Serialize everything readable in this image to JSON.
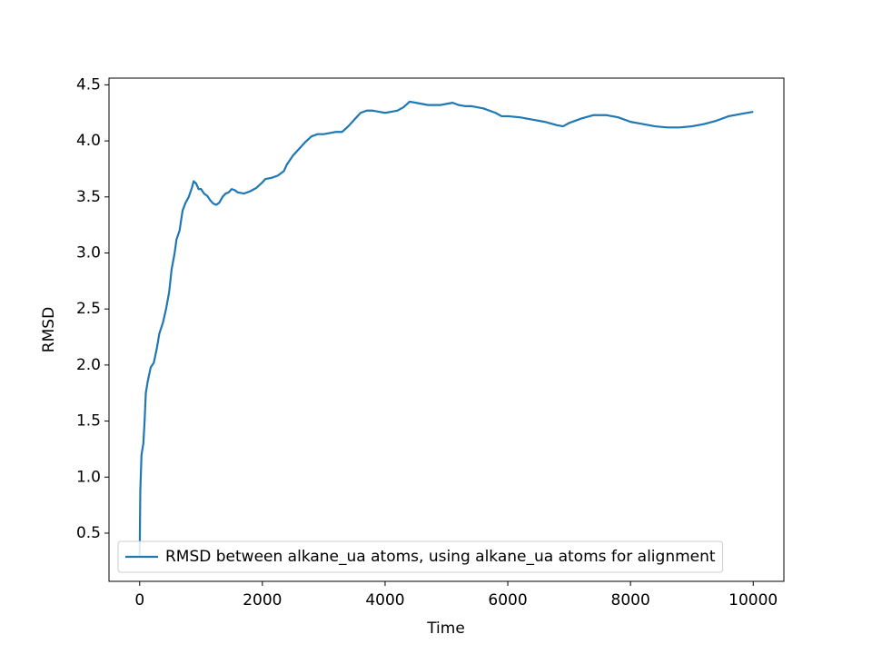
{
  "chart_data": {
    "type": "line",
    "xlabel": "Time",
    "ylabel": "RMSD",
    "x": [
      0,
      10,
      30,
      60,
      80,
      100,
      130,
      180,
      230,
      280,
      320,
      380,
      430,
      480,
      520,
      570,
      600,
      650,
      700,
      750,
      800,
      850,
      880,
      920,
      960,
      1000,
      1050,
      1100,
      1150,
      1200,
      1250,
      1300,
      1350,
      1400,
      1450,
      1500,
      1550,
      1600,
      1700,
      1800,
      1900,
      2000,
      2050,
      2150,
      2250,
      2350,
      2400,
      2500,
      2600,
      2700,
      2800,
      2900,
      3000,
      3100,
      3200,
      3300,
      3400,
      3500,
      3600,
      3700,
      3800,
      3900,
      4000,
      4100,
      4200,
      4300,
      4400,
      4500,
      4600,
      4700,
      4800,
      4900,
      5000,
      5100,
      5200,
      5300,
      5400,
      5600,
      5800,
      5900,
      6000,
      6200,
      6400,
      6600,
      6800,
      6900,
      7000,
      7200,
      7400,
      7600,
      7800,
      8000,
      8200,
      8400,
      8600,
      8800,
      9000,
      9200,
      9400,
      9600,
      9800,
      10000
    ],
    "series": [
      {
        "name": "RMSD between alkane_ua atoms, using alkane_ua atoms for alignment",
        "color": "#1f77b4",
        "values": [
          0.3,
          0.88,
          1.2,
          1.3,
          1.5,
          1.75,
          1.85,
          1.98,
          2.02,
          2.15,
          2.28,
          2.38,
          2.5,
          2.65,
          2.85,
          3.0,
          3.12,
          3.2,
          3.38,
          3.45,
          3.5,
          3.58,
          3.64,
          3.62,
          3.57,
          3.57,
          3.53,
          3.51,
          3.47,
          3.44,
          3.43,
          3.45,
          3.5,
          3.53,
          3.54,
          3.57,
          3.56,
          3.54,
          3.53,
          3.55,
          3.58,
          3.63,
          3.66,
          3.67,
          3.69,
          3.73,
          3.79,
          3.87,
          3.93,
          3.99,
          4.04,
          4.06,
          4.06,
          4.07,
          4.08,
          4.08,
          4.13,
          4.19,
          4.25,
          4.27,
          4.27,
          4.26,
          4.25,
          4.26,
          4.27,
          4.3,
          4.35,
          4.34,
          4.33,
          4.32,
          4.32,
          4.32,
          4.33,
          4.34,
          4.32,
          4.31,
          4.31,
          4.29,
          4.25,
          4.22,
          4.22,
          4.21,
          4.19,
          4.17,
          4.14,
          4.13,
          4.16,
          4.2,
          4.23,
          4.23,
          4.21,
          4.17,
          4.15,
          4.13,
          4.12,
          4.12,
          4.13,
          4.15,
          4.18,
          4.22,
          4.24,
          4.26
        ]
      }
    ],
    "xlim": [
      -500,
      10500
    ],
    "ylim": [
      0.07,
      4.56
    ],
    "xticks": [
      0,
      2000,
      4000,
      6000,
      8000,
      10000
    ],
    "yticks": [
      0.5,
      {
        "value": 1,
        "label": "1.0"
      },
      1.5,
      {
        "value": 2,
        "label": "2.0"
      },
      2.5,
      {
        "value": 3,
        "label": "3.0"
      },
      3.5,
      {
        "value": 4,
        "label": "4.0"
      },
      4.5
    ],
    "legend": "lower left"
  }
}
